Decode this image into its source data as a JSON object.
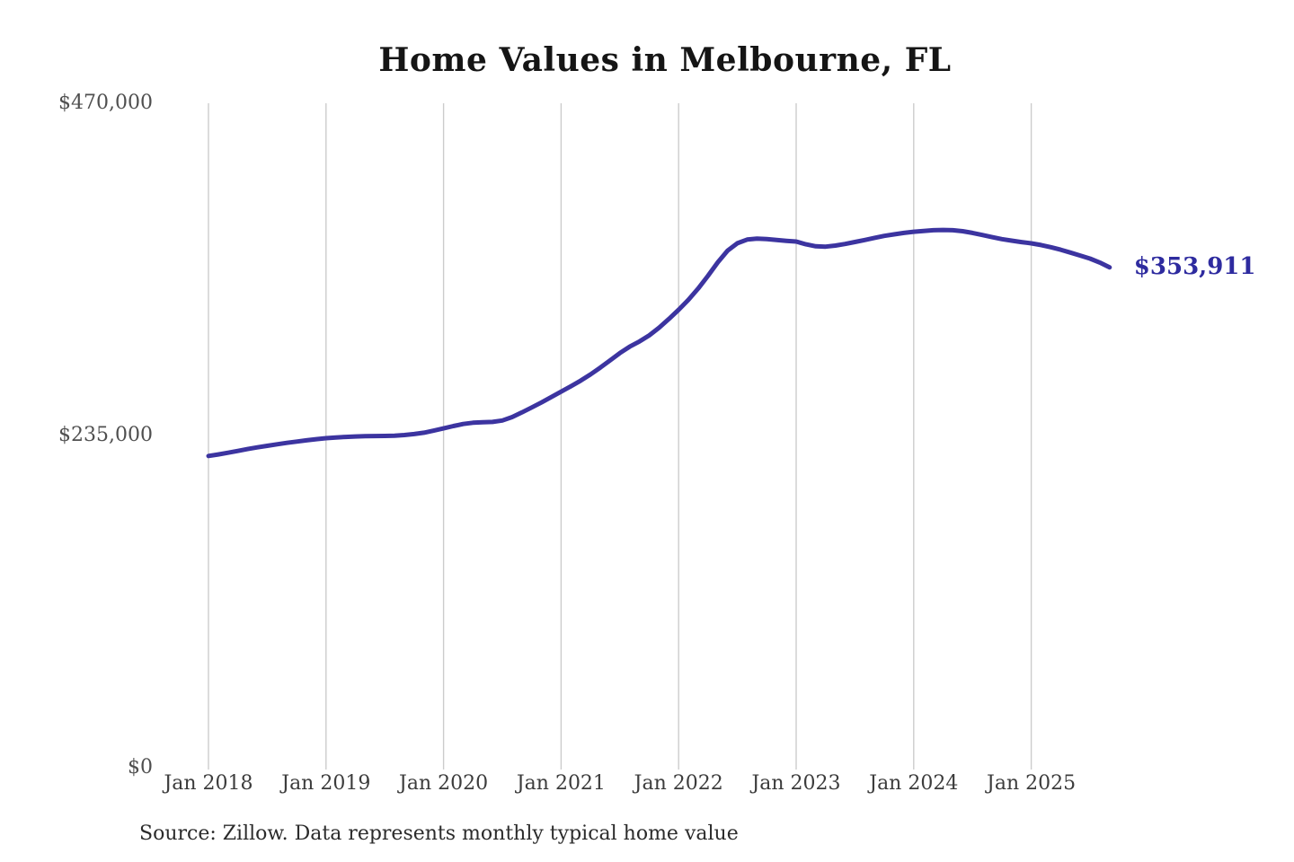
{
  "title": "Home Values in Melbourne, FL",
  "source_note": "Source: Zillow. Data represents monthly typical home value",
  "colors": {
    "background": "#ffffff",
    "line": "#3c34a0",
    "end_label": "#2e2b9f",
    "gridline": "#cccccc",
    "title_text": "#151515",
    "axis_text": "#3c3c3c"
  },
  "chart_data": {
    "type": "line",
    "title": "Home Values in Melbourne, FL",
    "xlabel": "",
    "ylabel": "",
    "ylim": [
      0,
      470000
    ],
    "grid": "vertical-only",
    "legend": "none",
    "yticks": [
      {
        "label": "$0",
        "value": 0
      },
      {
        "label": "$235,000",
        "value": 235000
      },
      {
        "label": "$470,000",
        "value": 470000
      }
    ],
    "xticks": [
      {
        "label": "Jan 2018"
      },
      {
        "label": "Jan 2019"
      },
      {
        "label": "Jan 2020"
      },
      {
        "label": "Jan 2021"
      },
      {
        "label": "Jan 2022"
      },
      {
        "label": "Jan 2023"
      },
      {
        "label": "Jan 2024"
      },
      {
        "label": "Jan 2025"
      }
    ],
    "end_label": "$353,911",
    "end_value": 353911,
    "series": [
      {
        "name": "Monthly typical home value",
        "color": "#3c34a0",
        "start": "2018-01",
        "end": "2025-09",
        "cadence": "monthly",
        "values": [
          220500,
          221600,
          222800,
          224100,
          225400,
          226600,
          227700,
          228800,
          229800,
          230700,
          231600,
          232400,
          233100,
          233600,
          234000,
          234300,
          234500,
          234600,
          234700,
          234900,
          235300,
          236000,
          237000,
          238400,
          240000,
          241700,
          243100,
          244000,
          244400,
          244600,
          245600,
          248000,
          251300,
          254800,
          258400,
          262200,
          266000,
          269800,
          273800,
          278200,
          283000,
          288100,
          293300,
          297800,
          301500,
          305800,
          311200,
          317400,
          323900,
          331000,
          339000,
          348000,
          357500,
          365800,
          371000,
          373600,
          374200,
          373900,
          373300,
          372700,
          372200,
          370200,
          368800,
          368600,
          369300,
          370500,
          371900,
          373300,
          374800,
          376200,
          377300,
          378300,
          379100,
          379700,
          380200,
          380400,
          380200,
          379500,
          378300,
          376800,
          375300,
          373900,
          372800,
          371800,
          370900,
          369700,
          368200,
          366400,
          364400,
          362300,
          360100,
          357300,
          353911
        ]
      }
    ]
  }
}
